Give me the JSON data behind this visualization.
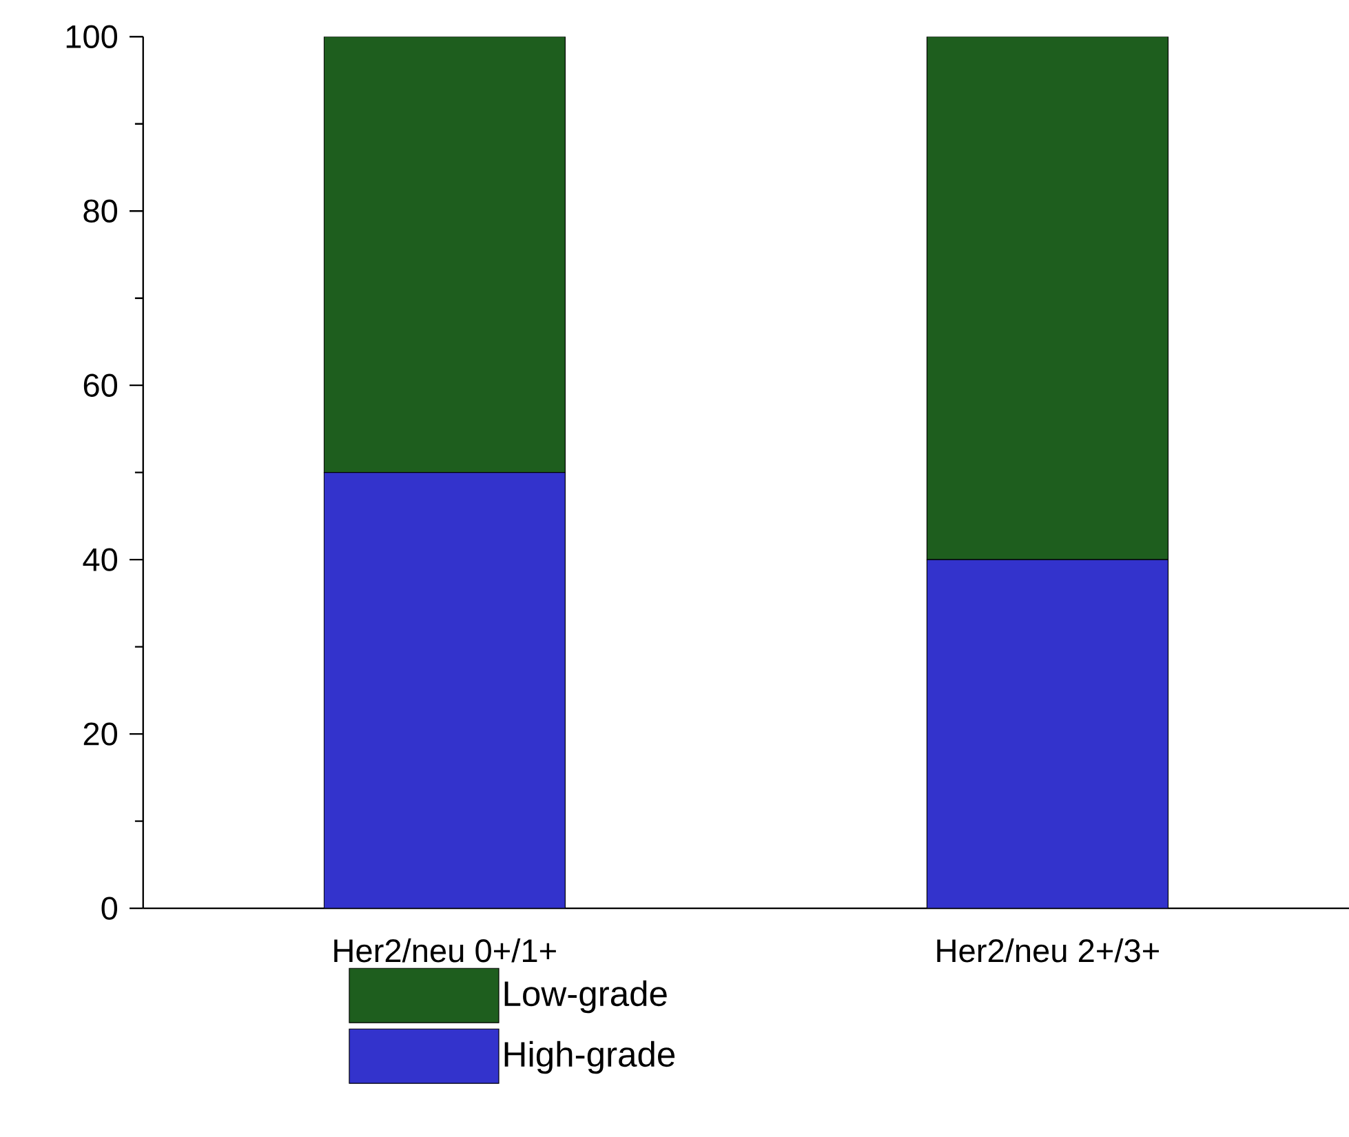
{
  "chart_data": {
    "type": "bar",
    "stacked": true,
    "categories": [
      "Her2/neu 0+/1+",
      "Her2/neu 2+/3+"
    ],
    "series": [
      {
        "name": "High-grade",
        "color": "#3333cc",
        "values": [
          50,
          40
        ]
      },
      {
        "name": "Low-grade",
        "color": "#1e5e1e",
        "values": [
          50,
          60
        ]
      }
    ],
    "ylim": [
      0,
      100
    ],
    "yticks": [
      0,
      20,
      40,
      60,
      80,
      100
    ],
    "legend": "bottom"
  }
}
